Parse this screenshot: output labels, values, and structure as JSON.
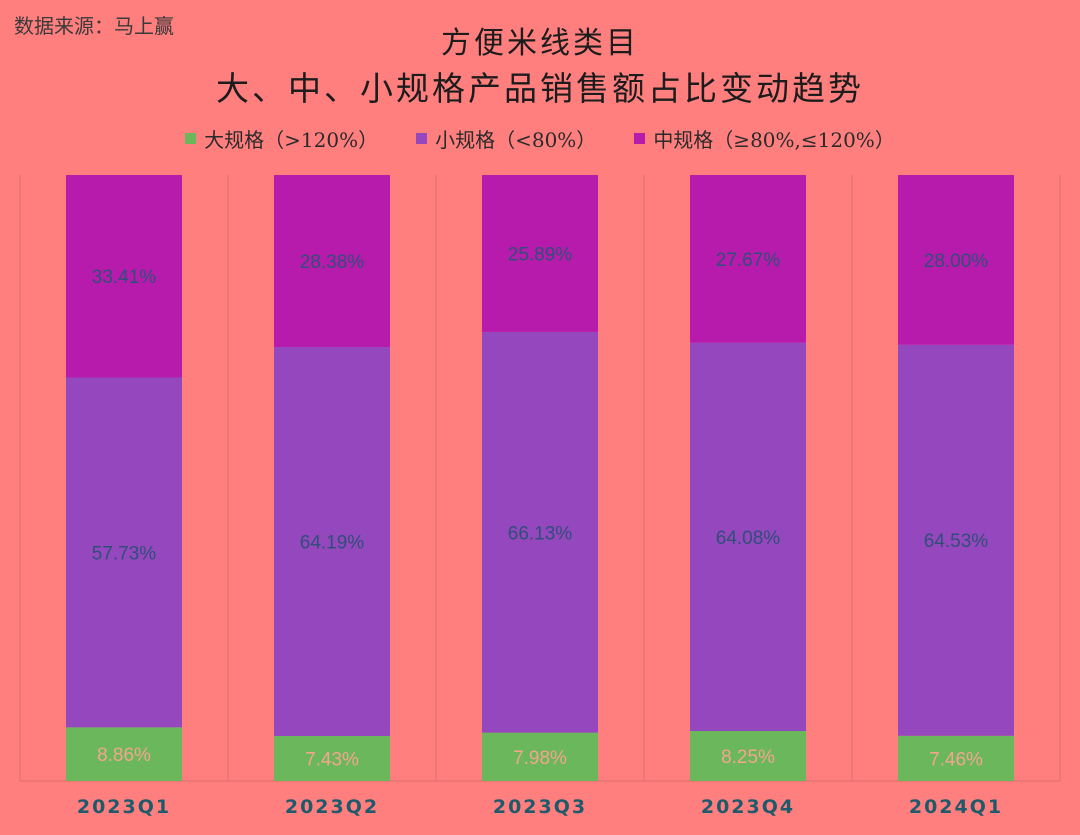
{
  "source": "数据来源：马上赢",
  "title_line1": "方便米线类目",
  "title_line2": "大、中、小规格产品销售额占比变动趋势",
  "colors": {
    "large": "#6ab75c",
    "small": "#9547bd",
    "medium": "#b71bac",
    "label_top": "#2e4f78",
    "label_bottom": "#f4a58e",
    "axis_text": "#1e5a6a",
    "gridline": "#dc6e6e"
  },
  "legend": [
    {
      "label": "大规格（>120%）",
      "color_key": "large"
    },
    {
      "label": "小规格（<80%）",
      "color_key": "small"
    },
    {
      "label": "中规格（≥80%,≤120%）",
      "color_key": "medium"
    }
  ],
  "chart_data": {
    "type": "bar",
    "stacked": true,
    "categories": [
      "2023Q1",
      "2023Q2",
      "2023Q3",
      "2023Q4",
      "2024Q1"
    ],
    "series": [
      {
        "name": "大规格（>120%）",
        "color_key": "large",
        "values": [
          8.86,
          7.43,
          7.98,
          8.25,
          7.46
        ],
        "labels": [
          "8.86%",
          "7.43%",
          "7.98%",
          "8.25%",
          "7.46%"
        ]
      },
      {
        "name": "小规格（<80%）",
        "color_key": "small",
        "values": [
          57.73,
          64.19,
          66.13,
          64.08,
          64.53
        ],
        "labels": [
          "57.73%",
          "64.19%",
          "66.13%",
          "64.08%",
          "64.53%"
        ]
      },
      {
        "name": "中规格（≥80%,≤120%）",
        "color_key": "medium",
        "values": [
          33.41,
          28.38,
          25.89,
          27.67,
          28.0
        ],
        "labels": [
          "33.41%",
          "28.38%",
          "25.89%",
          "27.67%",
          "28.00%"
        ]
      }
    ],
    "ylim": [
      0,
      100
    ],
    "legend_position": "top"
  }
}
